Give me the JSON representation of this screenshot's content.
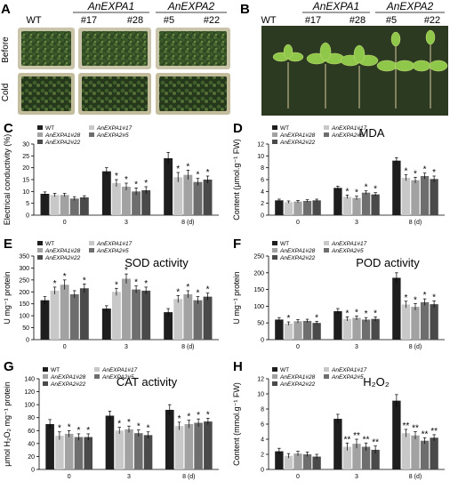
{
  "photos": {
    "A": {
      "letter": "A",
      "groups": [
        "AnEXPA1",
        "AnEXPA2"
      ],
      "columns": [
        "WT",
        "#17",
        "#28",
        "#5",
        "#22"
      ],
      "rows": [
        "Before",
        "Cold"
      ]
    },
    "B": {
      "letter": "B",
      "groups": [
        "AnEXPA1",
        "AnEXPA2"
      ],
      "columns": [
        "WT",
        "#17",
        "#28",
        "#5",
        "#22"
      ]
    }
  },
  "colors": {
    "WT": "#1e1e1e",
    "AnEXPA1#17": "#c8c8c8",
    "AnEXPA1#28": "#a2a2a2",
    "AnEXPA2#5": "#6e6e6e",
    "AnEXPA2#22": "#4a4a4a"
  },
  "chart_data": [
    {
      "panel": "C",
      "type": "bar",
      "title": "",
      "ylabel": "Electrical conductivity (%)",
      "xlabel": "",
      "categories": [
        "0",
        "3",
        "8 (d)"
      ],
      "ylim": [
        0,
        30
      ],
      "yticks": [
        0,
        5,
        10,
        15,
        20,
        25,
        30
      ],
      "legend_position": "top-left",
      "series": [
        {
          "name": "WT",
          "values": [
            9,
            18.5,
            24
          ],
          "errors": [
            0.8,
            1.5,
            2.5
          ],
          "sig": [
            "",
            "",
            ""
          ]
        },
        {
          "name": "AnEXPA1#17",
          "values": [
            8.5,
            13.5,
            16
          ],
          "errors": [
            0.7,
            1.5,
            2.0
          ],
          "sig": [
            "",
            "*",
            "*"
          ]
        },
        {
          "name": "AnEXPA1#28",
          "values": [
            8.5,
            12,
            17
          ],
          "errors": [
            0.7,
            1.5,
            2.0
          ],
          "sig": [
            "",
            "*",
            "*"
          ]
        },
        {
          "name": "AnEXPA2#5",
          "values": [
            7,
            10,
            14
          ],
          "errors": [
            0.8,
            1.5,
            1.5
          ],
          "sig": [
            "",
            "*",
            "*"
          ]
        },
        {
          "name": "AnEXPA2#22",
          "values": [
            7.5,
            10.5,
            15
          ],
          "errors": [
            0.7,
            1.5,
            1.5
          ],
          "sig": [
            "",
            "*",
            "*"
          ]
        }
      ]
    },
    {
      "panel": "D",
      "type": "bar",
      "title": "MDA",
      "ylabel": "Content (μmol.g⁻¹ FW)",
      "xlabel": "",
      "categories": [
        "0",
        "3",
        "8 (d)"
      ],
      "ylim": [
        0,
        12
      ],
      "yticks": [
        0,
        2,
        4,
        6,
        8,
        10,
        12
      ],
      "legend_position": "top-left",
      "series": [
        {
          "name": "WT",
          "values": [
            2.5,
            4.6,
            9.2
          ],
          "errors": [
            0.2,
            0.3,
            0.5
          ],
          "sig": [
            "",
            "",
            ""
          ]
        },
        {
          "name": "AnEXPA1#17",
          "values": [
            2.2,
            3.1,
            6.3
          ],
          "errors": [
            0.2,
            0.3,
            0.5
          ],
          "sig": [
            "",
            "*",
            "*"
          ]
        },
        {
          "name": "AnEXPA1#28",
          "values": [
            2.3,
            2.9,
            5.9
          ],
          "errors": [
            0.2,
            0.3,
            0.5
          ],
          "sig": [
            "",
            "*",
            "*"
          ]
        },
        {
          "name": "AnEXPA2#5",
          "values": [
            2.4,
            3.8,
            6.6
          ],
          "errors": [
            0.2,
            0.3,
            0.5
          ],
          "sig": [
            "",
            "*",
            "*"
          ]
        },
        {
          "name": "AnEXPA2#22",
          "values": [
            2.5,
            3.5,
            6.1
          ],
          "errors": [
            0.2,
            0.3,
            0.5
          ],
          "sig": [
            "",
            "*",
            "*"
          ]
        }
      ]
    },
    {
      "panel": "E",
      "type": "bar",
      "title": "SOD activity",
      "ylabel": "U mg⁻¹ protein",
      "xlabel": "",
      "categories": [
        "0",
        "3",
        "8 (d)"
      ],
      "ylim": [
        0,
        350
      ],
      "yticks": [
        0,
        50,
        100,
        150,
        200,
        250,
        300,
        350
      ],
      "legend_position": "top-left",
      "series": [
        {
          "name": "WT",
          "values": [
            165,
            130,
            115
          ],
          "errors": [
            15,
            12,
            15
          ],
          "sig": [
            "",
            "",
            ""
          ]
        },
        {
          "name": "AnEXPA1#17",
          "values": [
            205,
            200,
            170
          ],
          "errors": [
            15,
            15,
            15
          ],
          "sig": [
            "*",
            "*",
            "*"
          ]
        },
        {
          "name": "AnEXPA1#28",
          "values": [
            230,
            255,
            190
          ],
          "errors": [
            20,
            20,
            15
          ],
          "sig": [
            "*",
            "*",
            "*"
          ]
        },
        {
          "name": "AnEXPA2#5",
          "values": [
            190,
            210,
            165
          ],
          "errors": [
            15,
            15,
            15
          ],
          "sig": [
            "",
            "*",
            "*"
          ]
        },
        {
          "name": "AnEXPA2#22",
          "values": [
            215,
            205,
            180
          ],
          "errors": [
            18,
            15,
            15
          ],
          "sig": [
            "*",
            "*",
            "*"
          ]
        }
      ]
    },
    {
      "panel": "F",
      "type": "bar",
      "title": "POD activity",
      "ylabel": "U mg⁻¹ protein",
      "xlabel": "",
      "categories": [
        "0",
        "3",
        "8 (d)"
      ],
      "ylim": [
        0,
        250
      ],
      "yticks": [
        0,
        50,
        100,
        150,
        200,
        250
      ],
      "legend_position": "top-left",
      "series": [
        {
          "name": "WT",
          "values": [
            60,
            85,
            185
          ],
          "errors": [
            6,
            8,
            15
          ],
          "sig": [
            "",
            "",
            ""
          ]
        },
        {
          "name": "AnEXPA1#17",
          "values": [
            48,
            62,
            105
          ],
          "errors": [
            5,
            6,
            10
          ],
          "sig": [
            "*",
            "*",
            "*"
          ]
        },
        {
          "name": "AnEXPA1#28",
          "values": [
            55,
            65,
            98
          ],
          "errors": [
            5,
            6,
            10
          ],
          "sig": [
            "",
            "*",
            "*"
          ]
        },
        {
          "name": "AnEXPA2#5",
          "values": [
            56,
            60,
            112
          ],
          "errors": [
            5,
            6,
            10
          ],
          "sig": [
            "",
            "*",
            "*"
          ]
        },
        {
          "name": "AnEXPA2#22",
          "values": [
            50,
            62,
            106
          ],
          "errors": [
            5,
            6,
            10
          ],
          "sig": [
            "*",
            "*",
            "*"
          ]
        }
      ]
    },
    {
      "panel": "G",
      "type": "bar",
      "title": "CAT activity",
      "ylabel": "μmol H₂O₂ mg⁻¹ protein",
      "xlabel": "",
      "categories": [
        "0",
        "3",
        "8 (d)"
      ],
      "ylim": [
        0,
        140
      ],
      "yticks": [
        0,
        20,
        40,
        60,
        80,
        100,
        120,
        140
      ],
      "legend_position": "top-left",
      "series": [
        {
          "name": "WT",
          "values": [
            70,
            83,
            92
          ],
          "errors": [
            7,
            7,
            8
          ],
          "sig": [
            "",
            "",
            ""
          ]
        },
        {
          "name": "AnEXPA1#17",
          "values": [
            52,
            60,
            67
          ],
          "errors": [
            6,
            5,
            6
          ],
          "sig": [
            "*",
            "*",
            "*"
          ]
        },
        {
          "name": "AnEXPA1#28",
          "values": [
            55,
            62,
            70
          ],
          "errors": [
            5,
            5,
            6
          ],
          "sig": [
            "*",
            "*",
            "*"
          ]
        },
        {
          "name": "AnEXPA2#5",
          "values": [
            50,
            56,
            72
          ],
          "errors": [
            5,
            5,
            6
          ],
          "sig": [
            "*",
            "*",
            "*"
          ]
        },
        {
          "name": "AnEXPA2#22",
          "values": [
            50,
            53,
            74
          ],
          "errors": [
            5,
            5,
            5
          ],
          "sig": [
            "*",
            "*",
            "*"
          ]
        }
      ]
    },
    {
      "panel": "H",
      "type": "bar",
      "title": "H₂O₂",
      "ylabel": "Content (mmol.g⁻¹ FW)",
      "xlabel": "",
      "categories": [
        "0",
        "3",
        "8 (d)"
      ],
      "ylim": [
        0,
        12
      ],
      "yticks": [
        0,
        2,
        4,
        6,
        8,
        10,
        12
      ],
      "legend_position": "top-left",
      "series": [
        {
          "name": "WT",
          "values": [
            2.4,
            6.7,
            9.1
          ],
          "errors": [
            0.4,
            0.6,
            0.8
          ],
          "sig": [
            "",
            "",
            ""
          ]
        },
        {
          "name": "AnEXPA1#17",
          "values": [
            1.8,
            3.0,
            4.8
          ],
          "errors": [
            0.3,
            0.5,
            0.5
          ],
          "sig": [
            "",
            "**",
            "**"
          ]
        },
        {
          "name": "AnEXPA1#28",
          "values": [
            2.1,
            3.4,
            4.5
          ],
          "errors": [
            0.3,
            0.6,
            0.5
          ],
          "sig": [
            "",
            "**",
            "**"
          ]
        },
        {
          "name": "AnEXPA2#5",
          "values": [
            2.0,
            3.0,
            3.8
          ],
          "errors": [
            0.3,
            0.5,
            0.4
          ],
          "sig": [
            "",
            "**",
            "**"
          ]
        },
        {
          "name": "AnEXPA2#22",
          "values": [
            1.7,
            2.6,
            4.2
          ],
          "errors": [
            0.3,
            0.5,
            0.4
          ],
          "sig": [
            "",
            "**",
            "**"
          ]
        }
      ]
    }
  ]
}
